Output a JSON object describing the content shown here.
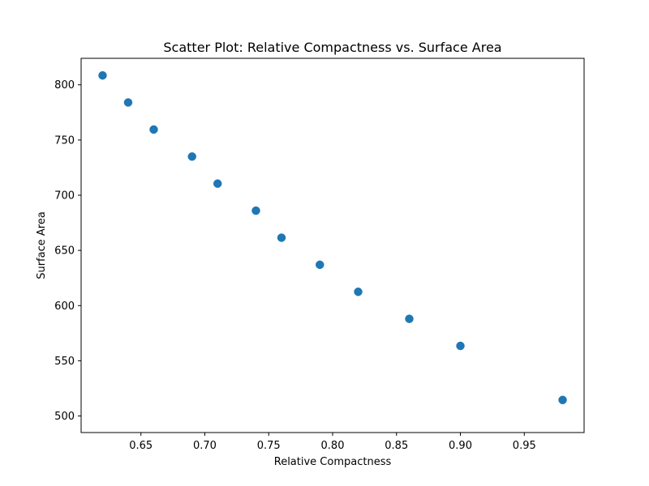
{
  "chart_data": {
    "type": "scatter",
    "title": "Scatter Plot: Relative Compactness vs. Surface Area",
    "xlabel": "Relative Compactness",
    "ylabel": "Surface Area",
    "xlim": [
      0.6032,
      0.9968
    ],
    "ylim": [
      485,
      824
    ],
    "x_ticks": [
      0.65,
      0.7,
      0.75,
      0.8,
      0.85,
      0.9,
      0.95
    ],
    "x_tick_labels": [
      "0.65",
      "0.70",
      "0.75",
      "0.80",
      "0.85",
      "0.90",
      "0.95"
    ],
    "y_ticks": [
      500,
      550,
      600,
      650,
      700,
      750,
      800
    ],
    "y_tick_labels": [
      "500",
      "550",
      "600",
      "650",
      "700",
      "750",
      "800"
    ],
    "grid": false,
    "series": [
      {
        "color": "#1f77b4",
        "points": [
          {
            "x": 0.62,
            "y": 808.5
          },
          {
            "x": 0.64,
            "y": 784.0
          },
          {
            "x": 0.66,
            "y": 759.5
          },
          {
            "x": 0.69,
            "y": 735.0
          },
          {
            "x": 0.71,
            "y": 710.5
          },
          {
            "x": 0.74,
            "y": 686.0
          },
          {
            "x": 0.76,
            "y": 661.5
          },
          {
            "x": 0.79,
            "y": 637.0
          },
          {
            "x": 0.82,
            "y": 612.5
          },
          {
            "x": 0.86,
            "y": 588.0
          },
          {
            "x": 0.9,
            "y": 563.5
          },
          {
            "x": 0.98,
            "y": 514.5
          }
        ]
      }
    ]
  }
}
